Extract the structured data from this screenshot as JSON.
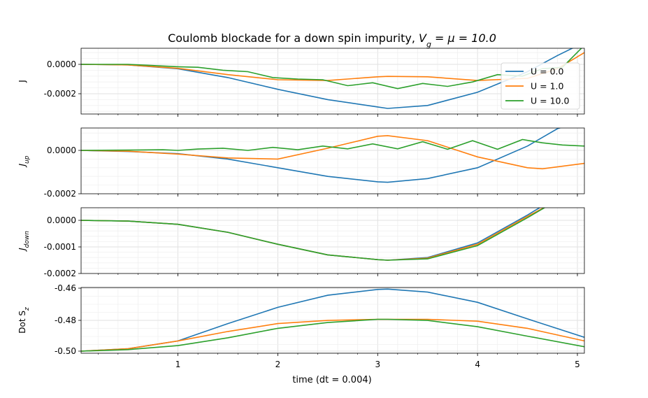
{
  "figure": {
    "title_prefix": "Coulomb blockade for a down spin impurity, ",
    "title_math": "V_g = μ = 10.0",
    "xlabel": "time (dt = 0.004)"
  },
  "colors": {
    "U = 0.0": "#1f77b4",
    "U = 1.0": "#ff7f0e",
    "U = 10.0": "#2ca02c"
  },
  "chart_data": [
    {
      "type": "line",
      "panel": "J",
      "ylabel": "J",
      "xlim": [
        0.03,
        5.07
      ],
      "ylim": [
        -0.00035,
        0.00011
      ],
      "x_ticks": [
        "1",
        "2",
        "3",
        "4",
        "5"
      ],
      "y_ticks": [
        "0.0000",
        "-0.0002"
      ],
      "legend": {
        "position": "top-right",
        "entries": [
          "U = 0.0",
          "U = 1.0",
          "U = 10.0"
        ]
      },
      "series": [
        {
          "name": "U = 0.0",
          "points": [
            [
              0.03,
              0
            ],
            [
              0.5,
              -4e-06
            ],
            [
              1.0,
              -3e-05
            ],
            [
              1.5,
              -9e-05
            ],
            [
              2.0,
              -0.00017
            ],
            [
              2.5,
              -0.00024
            ],
            [
              3.0,
              -0.00029
            ],
            [
              3.1,
              -0.0003
            ],
            [
              3.5,
              -0.00028
            ],
            [
              4.0,
              -0.00019
            ],
            [
              4.5,
              -5e-05
            ],
            [
              4.8,
              6e-05
            ],
            [
              5.07,
              0.00015
            ]
          ]
        },
        {
          "name": "U = 1.0",
          "points": [
            [
              0.03,
              0
            ],
            [
              0.5,
              -4e-06
            ],
            [
              1.0,
              -2.7e-05
            ],
            [
              1.5,
              -7e-05
            ],
            [
              2.0,
              -0.000105
            ],
            [
              2.5,
              -0.00011
            ],
            [
              3.0,
              -8.5e-05
            ],
            [
              3.1,
              -8.2e-05
            ],
            [
              3.5,
              -8.5e-05
            ],
            [
              4.0,
              -0.00011
            ],
            [
              4.5,
              -9.5e-05
            ],
            [
              4.8,
              -3e-05
            ],
            [
              5.07,
              8e-05
            ]
          ]
        },
        {
          "name": "U = 10.0",
          "points": [
            [
              0.03,
              0
            ],
            [
              0.5,
              0
            ],
            [
              0.75,
              -8e-06
            ],
            [
              1.0,
              -1.6e-05
            ],
            [
              1.2,
              -2e-05
            ],
            [
              1.45,
              -4e-05
            ],
            [
              1.7,
              -5e-05
            ],
            [
              1.95,
              -9e-05
            ],
            [
              2.2,
              -0.0001
            ],
            [
              2.45,
              -0.000105
            ],
            [
              2.7,
              -0.000145
            ],
            [
              2.95,
              -0.000125
            ],
            [
              3.2,
              -0.000165
            ],
            [
              3.45,
              -0.00013
            ],
            [
              3.7,
              -0.00015
            ],
            [
              3.95,
              -0.00012
            ],
            [
              4.2,
              -7e-05
            ],
            [
              4.45,
              -8e-05
            ],
            [
              4.65,
              -3e-05
            ],
            [
              4.85,
              -2e-05
            ],
            [
              5.07,
              0.00013
            ]
          ]
        }
      ]
    },
    {
      "type": "line",
      "panel": "J_up",
      "ylabel": "J",
      "ylabel_sub": "up",
      "xlim": [
        0.03,
        5.07
      ],
      "ylim": [
        -0.0002,
        0.0001
      ],
      "x_ticks": [
        "1",
        "2",
        "3",
        "4",
        "5"
      ],
      "y_ticks": [
        "0.0000",
        "-0.0002"
      ],
      "series": [
        {
          "name": "U = 0.0",
          "points": [
            [
              0.03,
              0
            ],
            [
              0.5,
              -5e-06
            ],
            [
              1.0,
              -1.5e-05
            ],
            [
              1.5,
              -4e-05
            ],
            [
              2.0,
              -8e-05
            ],
            [
              2.5,
              -0.00012
            ],
            [
              3.0,
              -0.000145
            ],
            [
              3.1,
              -0.000147
            ],
            [
              3.5,
              -0.00013
            ],
            [
              4.0,
              -8e-05
            ],
            [
              4.5,
              2e-05
            ],
            [
              4.8,
              0.0001
            ],
            [
              5.07,
              0.00014
            ]
          ]
        },
        {
          "name": "U = 1.0",
          "points": [
            [
              0.03,
              0
            ],
            [
              0.5,
              -4e-06
            ],
            [
              1.0,
              -1.7e-05
            ],
            [
              1.5,
              -3.5e-05
            ],
            [
              2.0,
              -4e-05
            ],
            [
              2.5,
              1e-05
            ],
            [
              3.0,
              6.5e-05
            ],
            [
              3.1,
              6.8e-05
            ],
            [
              3.5,
              4.5e-05
            ],
            [
              4.0,
              -3e-05
            ],
            [
              4.5,
              -8e-05
            ],
            [
              4.65,
              -8.5e-05
            ],
            [
              5.07,
              -6e-05
            ]
          ]
        },
        {
          "name": "U = 10.0",
          "points": [
            [
              0.03,
              0
            ],
            [
              0.6,
              2e-06
            ],
            [
              0.85,
              3e-06
            ],
            [
              1.0,
              0
            ],
            [
              1.2,
              6e-06
            ],
            [
              1.45,
              1e-05
            ],
            [
              1.7,
              0
            ],
            [
              1.95,
              1.4e-05
            ],
            [
              2.2,
              3e-06
            ],
            [
              2.45,
              2e-05
            ],
            [
              2.7,
              7e-06
            ],
            [
              2.95,
              3e-05
            ],
            [
              3.2,
              7e-06
            ],
            [
              3.45,
              4e-05
            ],
            [
              3.7,
              5e-06
            ],
            [
              3.95,
              4.5e-05
            ],
            [
              4.2,
              5e-06
            ],
            [
              4.45,
              5e-05
            ],
            [
              4.65,
              3.5e-05
            ],
            [
              4.85,
              2.5e-05
            ],
            [
              5.07,
              2e-05
            ]
          ]
        }
      ]
    },
    {
      "type": "line",
      "panel": "J_down",
      "ylabel": "J",
      "ylabel_sub": "down",
      "xlim": [
        0.03,
        5.07
      ],
      "ylim": [
        -0.0002,
        5e-05
      ],
      "x_ticks": [
        "1",
        "2",
        "3",
        "4",
        "5"
      ],
      "y_ticks": [
        "0.0000",
        "-0.0001",
        "-0.0002"
      ],
      "series": [
        {
          "name": "U = 0.0",
          "points": [
            [
              0.03,
              0
            ],
            [
              0.5,
              -3e-06
            ],
            [
              1.0,
              -1.5e-05
            ],
            [
              1.5,
              -4.5e-05
            ],
            [
              2.0,
              -9e-05
            ],
            [
              2.5,
              -0.00013
            ],
            [
              3.0,
              -0.000148
            ],
            [
              3.1,
              -0.00015
            ],
            [
              3.5,
              -0.00014
            ],
            [
              4.0,
              -8.5e-05
            ],
            [
              4.5,
              2e-05
            ],
            [
              4.7,
              6.5e-05
            ]
          ]
        },
        {
          "name": "U = 1.0",
          "points": [
            [
              0.03,
              0
            ],
            [
              0.5,
              -3e-06
            ],
            [
              1.0,
              -1.5e-05
            ],
            [
              1.5,
              -4.5e-05
            ],
            [
              2.0,
              -9e-05
            ],
            [
              2.5,
              -0.00013
            ],
            [
              3.0,
              -0.000148
            ],
            [
              3.1,
              -0.00015
            ],
            [
              3.5,
              -0.000142
            ],
            [
              4.0,
              -9e-05
            ],
            [
              4.5,
              1.5e-05
            ],
            [
              4.75,
              6.5e-05
            ]
          ]
        },
        {
          "name": "U = 10.0",
          "points": [
            [
              0.03,
              0
            ],
            [
              0.5,
              -3e-06
            ],
            [
              1.0,
              -1.5e-05
            ],
            [
              1.5,
              -4.5e-05
            ],
            [
              2.0,
              -9e-05
            ],
            [
              2.5,
              -0.00013
            ],
            [
              3.0,
              -0.000148
            ],
            [
              3.1,
              -0.00015
            ],
            [
              3.5,
              -0.000145
            ],
            [
              4.0,
              -9.5e-05
            ],
            [
              4.5,
              1e-05
            ],
            [
              4.75,
              6.5e-05
            ]
          ]
        }
      ]
    },
    {
      "type": "line",
      "panel": "dot_sz",
      "ylabel": "Dot S",
      "ylabel_sub": "z",
      "xlim": [
        0.03,
        5.07
      ],
      "ylim": [
        -0.5015,
        -0.4595
      ],
      "x_ticks": [
        "1",
        "2",
        "3",
        "4",
        "5"
      ],
      "y_ticks": [
        "-0.46",
        "-0.48",
        "-0.50"
      ],
      "series": [
        {
          "name": "U = 0.0",
          "points": [
            [
              0.03,
              -0.5
            ],
            [
              0.5,
              -0.4985
            ],
            [
              1.0,
              -0.4935
            ],
            [
              1.5,
              -0.4825
            ],
            [
              2.0,
              -0.4722
            ],
            [
              2.5,
              -0.4645
            ],
            [
              3.0,
              -0.4608
            ],
            [
              3.1,
              -0.4606
            ],
            [
              3.5,
              -0.4625
            ],
            [
              4.0,
              -0.469
            ],
            [
              4.5,
              -0.4795
            ],
            [
              5.07,
              -0.4912
            ]
          ]
        },
        {
          "name": "U = 1.0",
          "points": [
            [
              0.03,
              -0.5
            ],
            [
              0.5,
              -0.4985
            ],
            [
              1.0,
              -0.4935
            ],
            [
              1.5,
              -0.4875
            ],
            [
              2.0,
              -0.4825
            ],
            [
              2.5,
              -0.4805
            ],
            [
              3.0,
              -0.4798
            ],
            [
              3.1,
              -0.4798
            ],
            [
              3.5,
              -0.4798
            ],
            [
              4.0,
              -0.481
            ],
            [
              4.5,
              -0.4855
            ],
            [
              5.07,
              -0.4935
            ]
          ]
        },
        {
          "name": "U = 10.0",
          "points": [
            [
              0.03,
              -0.5
            ],
            [
              0.5,
              -0.499
            ],
            [
              1.0,
              -0.4965
            ],
            [
              1.5,
              -0.4915
            ],
            [
              2.0,
              -0.4855
            ],
            [
              2.5,
              -0.4818
            ],
            [
              3.0,
              -0.4798
            ],
            [
              3.1,
              -0.4798
            ],
            [
              3.5,
              -0.4805
            ],
            [
              4.0,
              -0.4845
            ],
            [
              4.5,
              -0.4905
            ],
            [
              5.07,
              -0.4972
            ]
          ]
        }
      ]
    }
  ]
}
